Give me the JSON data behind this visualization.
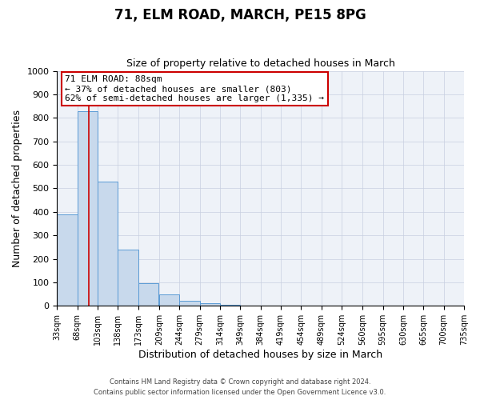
{
  "title": "71, ELM ROAD, MARCH, PE15 8PG",
  "subtitle": "Size of property relative to detached houses in March",
  "xlabel": "Distribution of detached houses by size in March",
  "ylabel": "Number of detached properties",
  "bar_color": "#c8d9ec",
  "bar_edge_color": "#5b9bd5",
  "bins": [
    33,
    68,
    103,
    138,
    173,
    209,
    244,
    279,
    314,
    349,
    384,
    419,
    454,
    489,
    524,
    560,
    595,
    630,
    665,
    700,
    735
  ],
  "bin_labels": [
    "33sqm",
    "68sqm",
    "103sqm",
    "138sqm",
    "173sqm",
    "209sqm",
    "244sqm",
    "279sqm",
    "314sqm",
    "349sqm",
    "384sqm",
    "419sqm",
    "454sqm",
    "489sqm",
    "524sqm",
    "560sqm",
    "595sqm",
    "630sqm",
    "665sqm",
    "700sqm",
    "735sqm"
  ],
  "values": [
    390,
    830,
    530,
    240,
    95,
    50,
    20,
    10,
    5,
    0,
    0,
    0,
    0,
    0,
    0,
    0,
    0,
    0,
    0,
    0
  ],
  "property_line_x": 88,
  "property_line_color": "#cc0000",
  "ylim": [
    0,
    1000
  ],
  "yticks": [
    0,
    100,
    200,
    300,
    400,
    500,
    600,
    700,
    800,
    900,
    1000
  ],
  "annotation_text": "71 ELM ROAD: 88sqm\n← 37% of detached houses are smaller (803)\n62% of semi-detached houses are larger (1,335) →",
  "annotation_box_color": "#ffffff",
  "annotation_box_edge_color": "#cc0000",
  "footer_line1": "Contains HM Land Registry data © Crown copyright and database right 2024.",
  "footer_line2": "Contains public sector information licensed under the Open Government Licence v3.0.",
  "background_color": "#eef2f8",
  "grid_color": "#c8cfe0"
}
